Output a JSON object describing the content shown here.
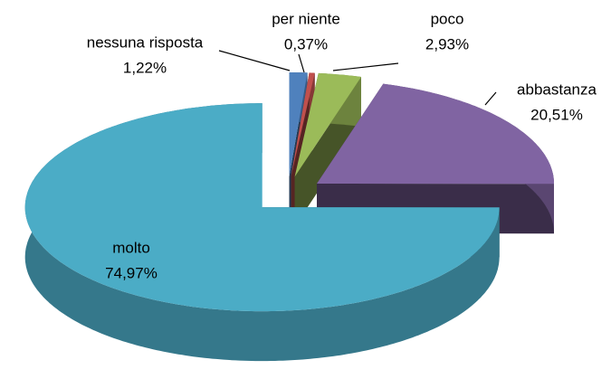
{
  "chart_data": {
    "type": "pie",
    "categories": [
      "nessuna risposta",
      "per niente",
      "poco",
      "abbastanza",
      "molto"
    ],
    "values": [
      1.22,
      0.37,
      2.93,
      20.51,
      74.97
    ],
    "value_labels": [
      "1,22%",
      "0,37%",
      "2,93%",
      "20,51%",
      "74,97%"
    ],
    "colors": [
      "#4f81bd",
      "#c0504d",
      "#9bbb59",
      "#8064a2",
      "#4bacc6"
    ]
  }
}
